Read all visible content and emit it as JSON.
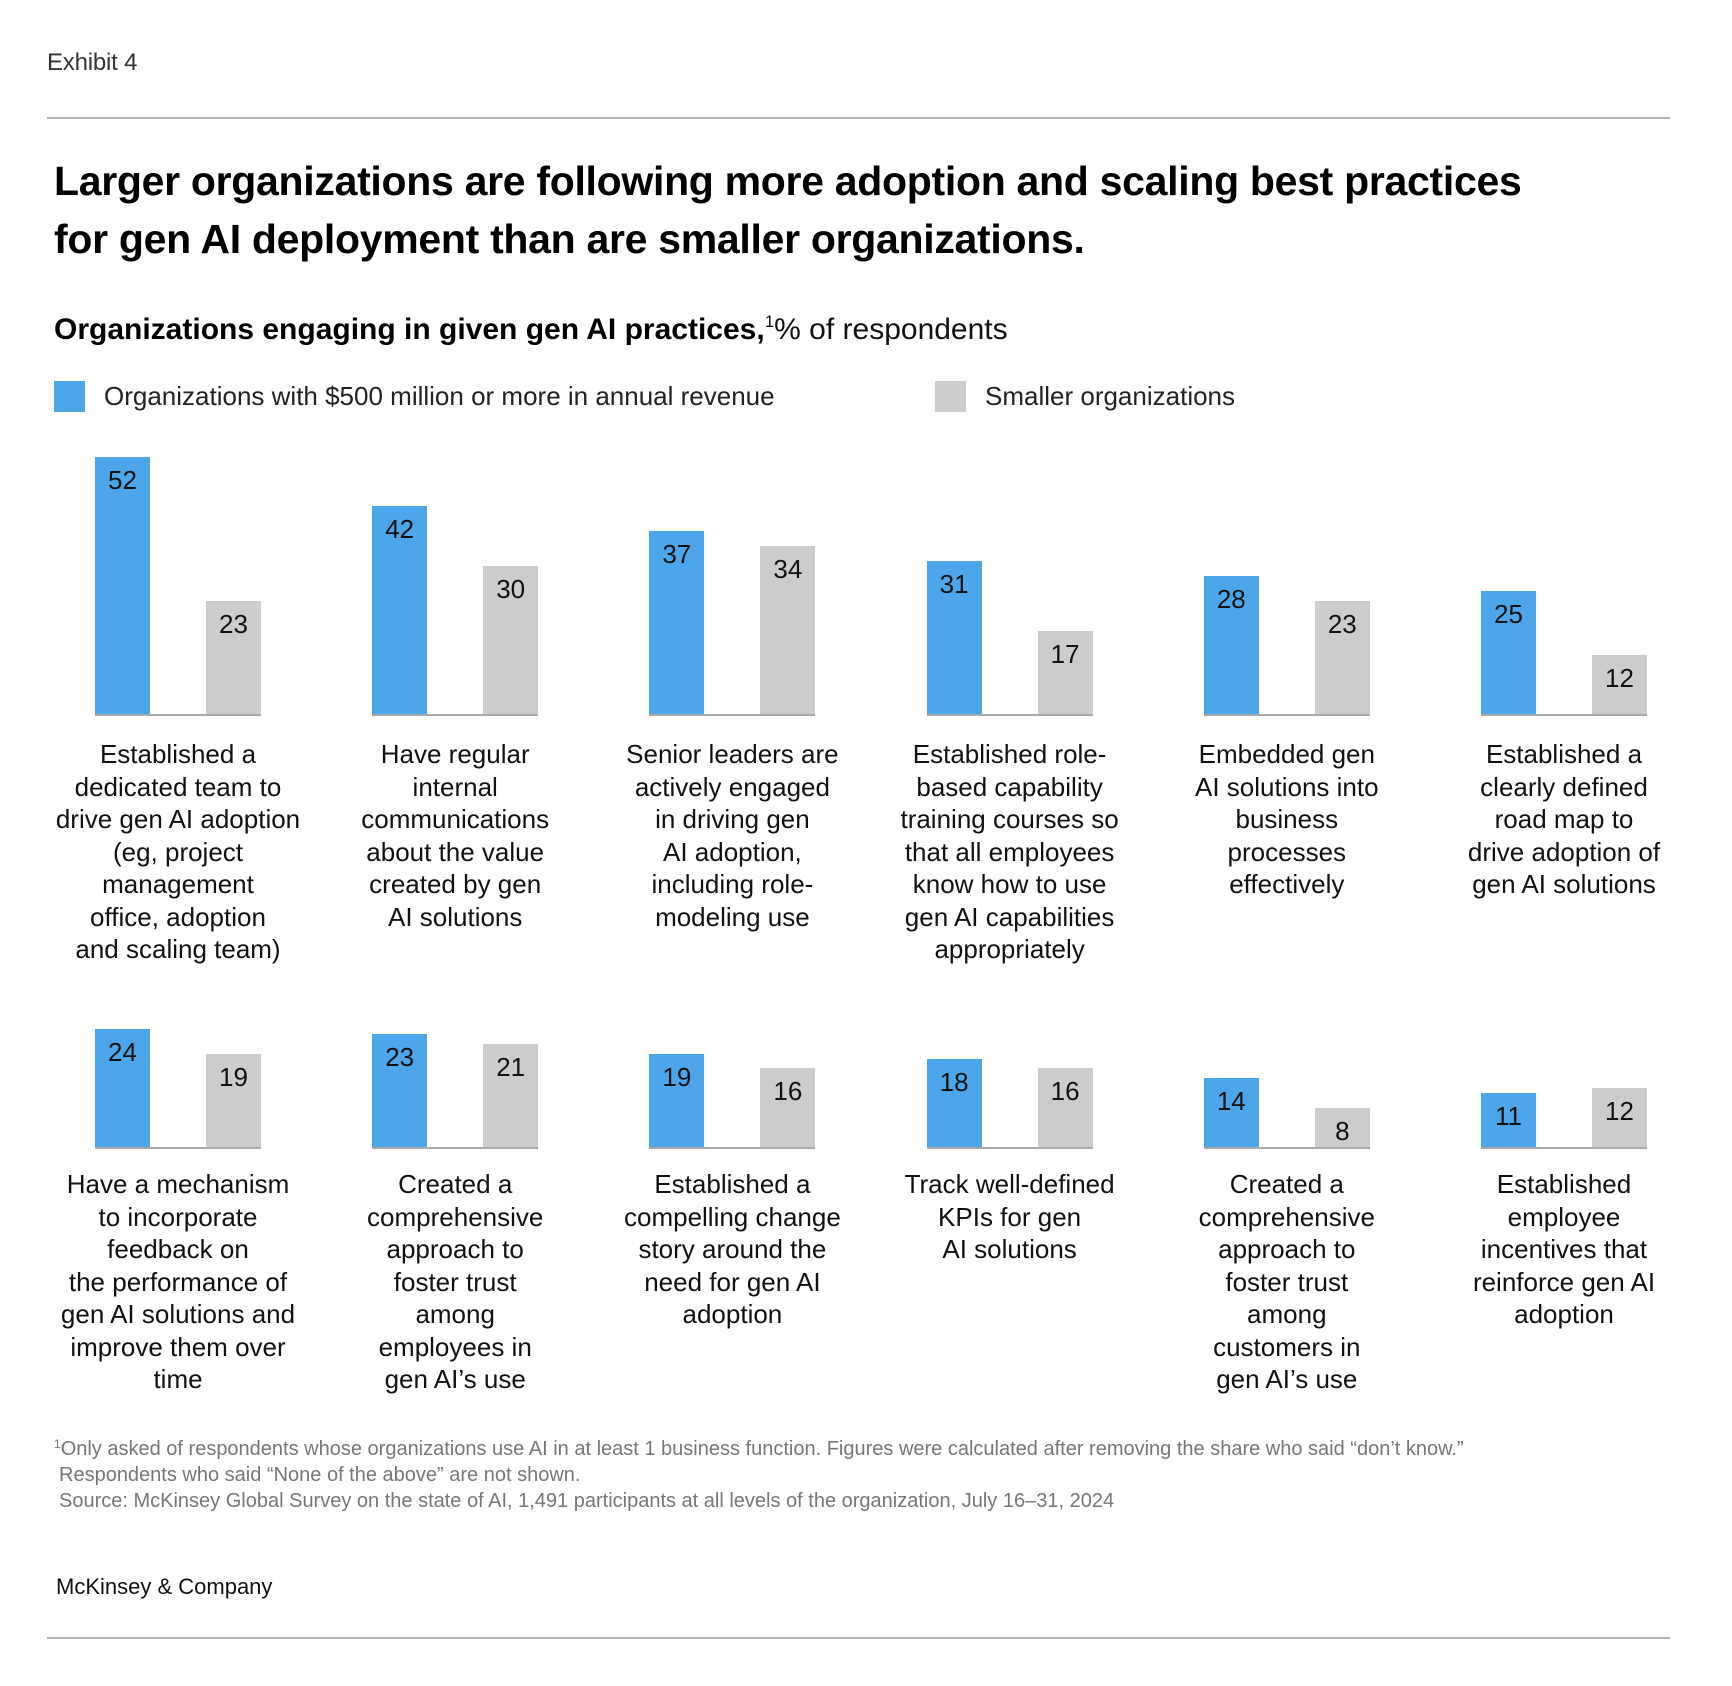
{
  "exhibit_label": "Exhibit 4",
  "title": "Larger organizations are following more adoption and scaling best practices for gen AI deployment than are smaller organizations.",
  "subtitle": {
    "bold": "Organizations engaging in given gen AI practices,",
    "footnote_mark": "1",
    "regular": "% of respondents"
  },
  "colors": {
    "large_orgs": "#4da6ea",
    "smaller_orgs": "#cccccc",
    "baseline": "#aaaaaa"
  },
  "legend": [
    {
      "label": "Organizations with $500 million or more in annual revenue",
      "color": "#4da6ea"
    },
    {
      "label": "Smaller organizations",
      "color": "#cccccc"
    }
  ],
  "chart_data": {
    "type": "bar",
    "title": "Larger organizations are following more adoption and scaling best practices for gen AI deployment than are smaller organizations.",
    "subtitle": "Organizations engaging in given gen AI practices, % of respondents",
    "xlabel": "",
    "ylabel": "% of respondents",
    "ylim": [
      0,
      55
    ],
    "grid": false,
    "legend_position": "top-left",
    "layout": "small-multiples, 2 rows x 6 columns",
    "categories": [
      "Established a dedicated team to drive gen AI adoption (eg, project management office, adoption and scaling team)",
      "Have regular internal communications about the value created by gen AI solutions",
      "Senior leaders are actively engaged in driving gen AI adoption, including role-modeling use",
      "Established role-based capability training courses so that all employees know how to use gen AI capabilities appropriately",
      "Embedded gen AI solutions into business processes effectively",
      "Established a clearly defined road map to drive adoption of gen AI solutions",
      "Have a mechanism to incorporate feedback on the performance of gen AI solutions and improve them over time",
      "Created a comprehensive approach to foster trust among employees in gen AI's use",
      "Established a compelling change story around the need for gen AI adoption",
      "Track well-defined KPIs for gen AI solutions",
      "Created a comprehensive approach to foster trust among customers in gen AI's use",
      "Established employee incentives that reinforce gen AI adoption"
    ],
    "category_labels_wrapped": [
      "Established a\ndedicated team to\ndrive gen AI adoption\n(eg, project\nmanagement\noffice, adoption\nand scaling team)",
      "Have regular\ninternal\ncommunications\nabout the value\ncreated by gen\nAI solutions",
      "Senior leaders are\nactively engaged\nin driving gen\nAI adoption,\nincluding role-\nmodeling use",
      "Established role-\nbased capability\ntraining courses so\nthat all employees\nknow how to use\ngen AI capabilities\nappropriately",
      "Embedded gen\nAI solutions into\nbusiness\nprocesses\neffectively",
      "Established a\nclearly defined\nroad map to\ndrive adoption of\ngen AI solutions",
      "Have a mechanism\nto incorporate\nfeedback on\nthe performance of\ngen AI solutions and\nimprove them over\ntime",
      "Created a\ncomprehensive\napproach to\nfoster trust\namong\nemployees in\ngen AI’s use",
      "Established a\ncompelling change\nstory around the\nneed for gen AI\nadoption",
      "Track well-defined\nKPIs for gen\nAI solutions",
      "Created a\ncomprehensive\napproach to\nfoster trust\namong\ncustomers in\ngen AI’s use",
      "Established\nemployee\nincentives that\nreinforce gen AI\nadoption"
    ],
    "series": [
      {
        "name": "Organizations with $500 million or more in annual revenue",
        "color": "#4da6ea",
        "values": [
          52,
          42,
          37,
          31,
          28,
          25,
          24,
          23,
          19,
          18,
          14,
          11
        ]
      },
      {
        "name": "Smaller organizations",
        "color": "#cccccc",
        "values": [
          23,
          30,
          34,
          17,
          23,
          12,
          19,
          21,
          16,
          16,
          8,
          12
        ]
      }
    ]
  },
  "footnotes": {
    "mark": "1",
    "line1": "Only asked of respondents whose organizations use AI in at least 1 business function. Figures were calculated after removing the share who said “don’t know.”",
    "line2": "Respondents who said “None of the above” are not shown.",
    "source": "Source: McKinsey Global Survey on the state of AI, 1,491 participants at all levels of the organization, July 16–31, 2024"
  },
  "brand": "McKinsey & Company"
}
